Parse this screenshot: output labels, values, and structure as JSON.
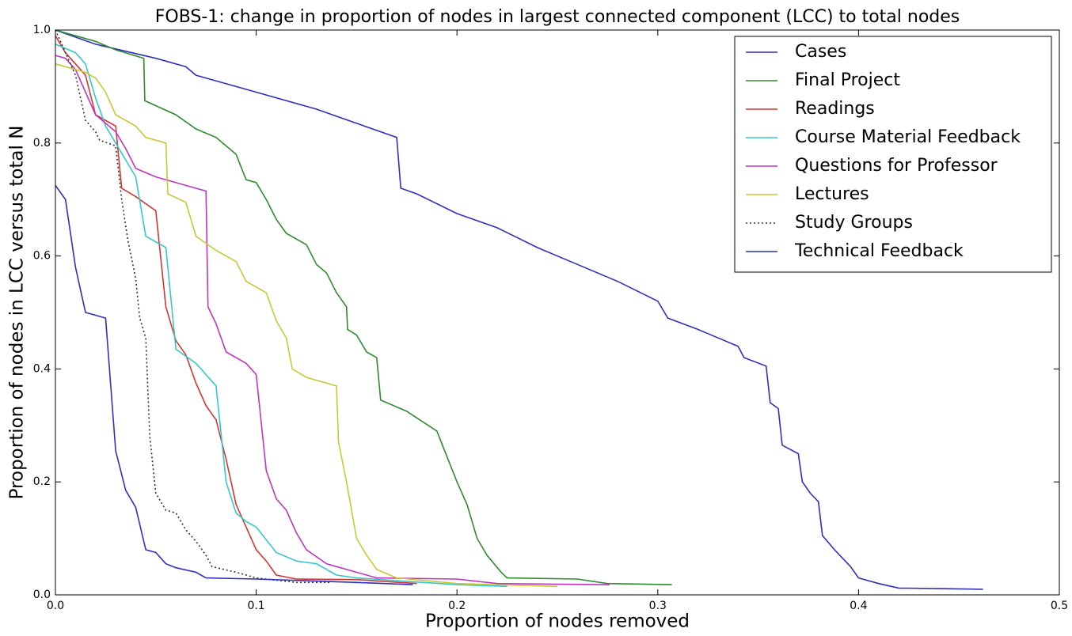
{
  "chart_data": {
    "type": "line",
    "title": "FOBS-1:  change in proportion of nodes in largest connected component (LCC) to total nodes",
    "xlabel": "Proportion of nodes removed",
    "ylabel": "Proportion of nodes in LCC versus total N",
    "xlim": [
      0,
      0.5
    ],
    "ylim": [
      0,
      1
    ],
    "xticks": [
      {
        "value": 0,
        "label": "0.0"
      },
      0.1,
      0.2,
      0.3,
      0.4,
      0.5
    ],
    "yticks": [
      {
        "value": 0,
        "label": "0.0"
      },
      0.2,
      0.4,
      0.6,
      0.8,
      {
        "value": 1,
        "label": "1.0"
      }
    ],
    "grid": false,
    "legend": "upper right",
    "series": [
      {
        "name": "Cases",
        "color": "#2f2fbf",
        "linestyle": "solid",
        "x": [
          0,
          0.02,
          0.05,
          0.065,
          0.07,
          0.1,
          0.13,
          0.17,
          0.172,
          0.18,
          0.2,
          0.22,
          0.24,
          0.26,
          0.28,
          0.3,
          0.305,
          0.32,
          0.34,
          0.343,
          0.354,
          0.356,
          0.36,
          0.362,
          0.37,
          0.372,
          0.376,
          0.38,
          0.382,
          0.388,
          0.396,
          0.4,
          0.41,
          0.42,
          0.44,
          0.462
        ],
        "values": [
          1.0,
          0.975,
          0.95,
          0.935,
          0.92,
          0.89,
          0.86,
          0.81,
          0.72,
          0.71,
          0.675,
          0.65,
          0.615,
          0.585,
          0.555,
          0.52,
          0.49,
          0.47,
          0.44,
          0.42,
          0.405,
          0.34,
          0.33,
          0.265,
          0.25,
          0.2,
          0.18,
          0.165,
          0.105,
          0.08,
          0.05,
          0.03,
          0.02,
          0.012,
          0.011,
          0.01
        ]
      },
      {
        "name": "Final Project",
        "color": "#2e8b2e",
        "linestyle": "solid",
        "x": [
          0,
          0.02,
          0.03,
          0.044,
          0.0445,
          0.06,
          0.07,
          0.08,
          0.09,
          0.095,
          0.1,
          0.105,
          0.11,
          0.115,
          0.125,
          0.13,
          0.135,
          0.14,
          0.145,
          0.1455,
          0.15,
          0.155,
          0.16,
          0.162,
          0.175,
          0.19,
          0.2,
          0.205,
          0.21,
          0.215,
          0.222,
          0.225,
          0.26,
          0.275,
          0.307
        ],
        "values": [
          1.0,
          0.98,
          0.965,
          0.95,
          0.875,
          0.85,
          0.825,
          0.81,
          0.78,
          0.735,
          0.73,
          0.7,
          0.665,
          0.64,
          0.62,
          0.585,
          0.57,
          0.535,
          0.51,
          0.47,
          0.46,
          0.43,
          0.42,
          0.345,
          0.325,
          0.29,
          0.2,
          0.16,
          0.1,
          0.07,
          0.04,
          0.03,
          0.028,
          0.02,
          0.018
        ]
      },
      {
        "name": "Readings",
        "color": "#d43434",
        "linestyle": "solid",
        "x": [
          0,
          0.005,
          0.01,
          0.015,
          0.02,
          0.03,
          0.033,
          0.04,
          0.05,
          0.055,
          0.06,
          0.065,
          0.07,
          0.075,
          0.08,
          0.085,
          0.09,
          0.095,
          0.1,
          0.105,
          0.11,
          0.12,
          0.15,
          0.18
        ],
        "values": [
          0.99,
          0.96,
          0.94,
          0.92,
          0.85,
          0.83,
          0.72,
          0.705,
          0.68,
          0.51,
          0.45,
          0.425,
          0.375,
          0.335,
          0.31,
          0.24,
          0.16,
          0.12,
          0.08,
          0.06,
          0.035,
          0.028,
          0.027,
          0.02
        ]
      },
      {
        "name": "Course Material Feedback",
        "color": "#36c8c8",
        "linestyle": "solid",
        "x": [
          0,
          0.01,
          0.015,
          0.02,
          0.025,
          0.03,
          0.04,
          0.045,
          0.055,
          0.06,
          0.07,
          0.08,
          0.085,
          0.09,
          0.095,
          0.1,
          0.11,
          0.12,
          0.13,
          0.14,
          0.15,
          0.17,
          0.2,
          0.225
        ],
        "values": [
          0.975,
          0.96,
          0.94,
          0.88,
          0.83,
          0.8,
          0.74,
          0.635,
          0.615,
          0.435,
          0.41,
          0.37,
          0.2,
          0.145,
          0.13,
          0.12,
          0.075,
          0.06,
          0.055,
          0.035,
          0.03,
          0.025,
          0.018,
          0.015
        ]
      },
      {
        "name": "Questions for Professor",
        "color": "#c034c0",
        "linestyle": "solid",
        "x": [
          0,
          0.005,
          0.01,
          0.02,
          0.03,
          0.035,
          0.04,
          0.05,
          0.065,
          0.075,
          0.076,
          0.08,
          0.085,
          0.095,
          0.1,
          0.105,
          0.11,
          0.115,
          0.12,
          0.125,
          0.135,
          0.14,
          0.15,
          0.16,
          0.2,
          0.22,
          0.276
        ],
        "values": [
          0.955,
          0.95,
          0.93,
          0.85,
          0.82,
          0.79,
          0.755,
          0.74,
          0.725,
          0.715,
          0.51,
          0.48,
          0.43,
          0.41,
          0.39,
          0.22,
          0.17,
          0.15,
          0.11,
          0.08,
          0.055,
          0.05,
          0.04,
          0.03,
          0.028,
          0.02,
          0.018
        ]
      },
      {
        "name": "Lectures",
        "color": "#c8c834",
        "linestyle": "solid",
        "x": [
          0,
          0.015,
          0.02,
          0.025,
          0.03,
          0.04,
          0.045,
          0.055,
          0.056,
          0.065,
          0.07,
          0.08,
          0.09,
          0.095,
          0.105,
          0.11,
          0.115,
          0.118,
          0.125,
          0.14,
          0.141,
          0.145,
          0.15,
          0.155,
          0.16,
          0.17,
          0.2,
          0.25
        ],
        "values": [
          0.94,
          0.925,
          0.915,
          0.89,
          0.85,
          0.83,
          0.81,
          0.8,
          0.71,
          0.695,
          0.635,
          0.61,
          0.59,
          0.555,
          0.535,
          0.485,
          0.455,
          0.4,
          0.385,
          0.37,
          0.27,
          0.2,
          0.1,
          0.07,
          0.045,
          0.03,
          0.02,
          0.015
        ]
      },
      {
        "name": "Study Groups",
        "color": "#333333",
        "linestyle": "dotted",
        "x": [
          0,
          0.005,
          0.01,
          0.015,
          0.02,
          0.022,
          0.03,
          0.033,
          0.036,
          0.04,
          0.042,
          0.045,
          0.047,
          0.05,
          0.055,
          0.06,
          0.065,
          0.07,
          0.075,
          0.078,
          0.09,
          0.1,
          0.12,
          0.137
        ],
        "values": [
          1.0,
          0.96,
          0.92,
          0.84,
          0.82,
          0.805,
          0.795,
          0.7,
          0.63,
          0.56,
          0.49,
          0.455,
          0.28,
          0.18,
          0.15,
          0.145,
          0.115,
          0.095,
          0.07,
          0.05,
          0.04,
          0.03,
          0.022,
          0.022
        ]
      },
      {
        "name": "Technical Feedback",
        "color": "#2f2fbf",
        "linestyle": "solid",
        "x": [
          0,
          0.005,
          0.01,
          0.015,
          0.025,
          0.03,
          0.035,
          0.04,
          0.045,
          0.05,
          0.055,
          0.06,
          0.07,
          0.075,
          0.1,
          0.15,
          0.178
        ],
        "values": [
          0.725,
          0.7,
          0.58,
          0.5,
          0.49,
          0.255,
          0.185,
          0.155,
          0.08,
          0.075,
          0.055,
          0.048,
          0.04,
          0.03,
          0.028,
          0.022,
          0.018
        ]
      }
    ]
  }
}
